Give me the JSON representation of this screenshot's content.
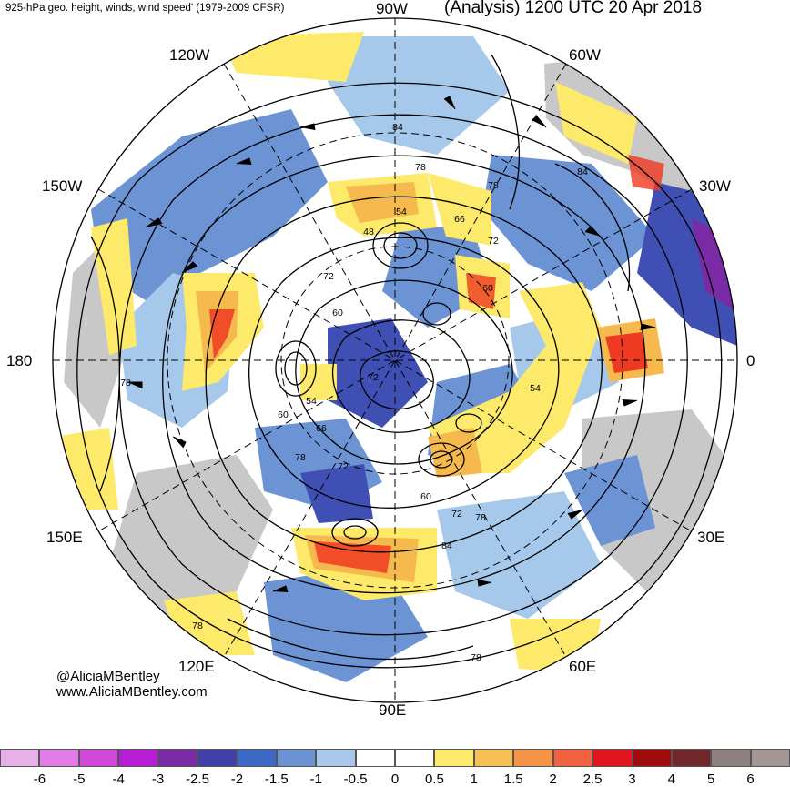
{
  "header": {
    "subtitle": "925-hPa geo. height, winds, wind speed' (1979-2009 CFSR)",
    "title": "(Analysis) 1200 UTC 20 Apr 2018"
  },
  "map": {
    "projection": "north polar stereographic",
    "longitude_labels": {
      "top": "90W",
      "upper_left": "120W",
      "upper_right": "60W",
      "left_upper": "150W",
      "right_upper": "30W",
      "left": "180",
      "right": "0",
      "left_lower": "150E",
      "right_lower": "30E",
      "lower_left": "120E",
      "lower_right": "60E",
      "bottom": "90E"
    },
    "contour_labels": [
      "84",
      "78",
      "78",
      "66",
      "72",
      "54",
      "48",
      "72",
      "60",
      "60",
      "84",
      "78",
      "72",
      "54",
      "60",
      "54",
      "66",
      "78",
      "72",
      "60",
      "72",
      "78",
      "84",
      "78",
      "78"
    ],
    "colors": {
      "land": "#c8c8c8",
      "strong_negative": "#3f4fb4",
      "negative": "#6c93d4",
      "weak_negative": "#a6c8ea",
      "weak_positive": "#fde96a",
      "positive": "#f6b94e",
      "strong_positive": "#ef3a22"
    }
  },
  "colorbar": {
    "colors": [
      "#e7b0e9",
      "#e37ce8",
      "#d147d9",
      "#b71ed3",
      "#7b2aa5",
      "#4040a8",
      "#3e68c6",
      "#6b93d4",
      "#a7c8ea",
      "#ffffff",
      "#ffffff",
      "#fde96a",
      "#f6c054",
      "#f59347",
      "#f26140",
      "#e2151c",
      "#a10d0d",
      "#70262a",
      "#8e8080",
      "#a39695"
    ],
    "labels": [
      "-6",
      "-5",
      "-4",
      "-3",
      "-2.5",
      "-2",
      "-1.5",
      "-1",
      "-0.5",
      "0",
      "0.5",
      "1",
      "1.5",
      "2",
      "2.5",
      "3",
      "4",
      "5",
      "6"
    ]
  },
  "credit": {
    "handle": "@AliciaMBentley",
    "site": "www.AliciaMBentley.com"
  }
}
